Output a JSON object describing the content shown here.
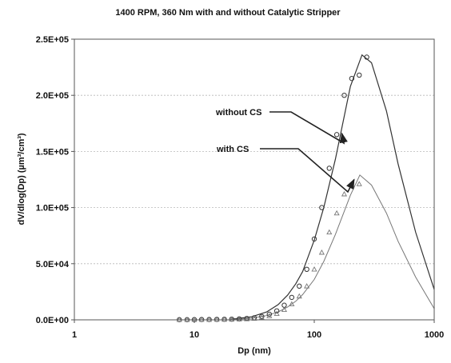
{
  "chart_data": {
    "type": "scatter",
    "title": "1400 RPM, 360 Nm with and without Catalytic Stripper",
    "xlabel": "Dp (nm)",
    "ylabel": "dV/dlog(Dp) (µm³/cm³)",
    "x_scale": "log",
    "xlim": [
      1,
      1000
    ],
    "ylim": [
      0,
      250000
    ],
    "x_ticks": [
      1,
      10,
      100,
      1000
    ],
    "x_tick_labels": [
      "1",
      "10",
      "100",
      "1000"
    ],
    "y_ticks": [
      0,
      50000,
      100000,
      150000,
      200000,
      250000
    ],
    "y_tick_labels": [
      "0.0E+00",
      "5.0E+04",
      "1.0E+05",
      "1.5E+05",
      "2.0E+05",
      "2.5E+05"
    ],
    "grid": "horizontal dashed",
    "legend": "none",
    "series": [
      {
        "name": "without CS",
        "marker": "open-circle",
        "color": "#333333",
        "points": [
          [
            7.5,
            100
          ],
          [
            8.7,
            100
          ],
          [
            10,
            200
          ],
          [
            11.5,
            300
          ],
          [
            13.3,
            300
          ],
          [
            15.4,
            400
          ],
          [
            17.8,
            500
          ],
          [
            20.5,
            600
          ],
          [
            23.7,
            800
          ],
          [
            27.4,
            1200
          ],
          [
            31.6,
            1800
          ],
          [
            36.5,
            3000
          ],
          [
            42.2,
            5000
          ],
          [
            48.7,
            8000
          ],
          [
            56.2,
            13000
          ],
          [
            64.9,
            20000
          ],
          [
            75,
            30000
          ],
          [
            86.6,
            45000
          ],
          [
            100,
            72000
          ],
          [
            115.5,
            100000
          ],
          [
            133.4,
            135000
          ],
          [
            154,
            165000
          ],
          [
            177.8,
            200000
          ],
          [
            205.4,
            215000
          ],
          [
            237.1,
            218000
          ],
          [
            273.8,
            234000
          ]
        ],
        "fit": {
          "peak_x": 250,
          "peak_y": 236000,
          "log10_width": 0.3,
          "curve_x": [
            20,
            30,
            40,
            50,
            60,
            70,
            80,
            100,
            120,
            150,
            200,
            250,
            300,
            400,
            500,
            700,
            1000
          ],
          "curve_y": [
            500,
            2700,
            7000,
            13500,
            22000,
            32000,
            43000,
            71000,
            100000,
            143000,
            208000,
            236000,
            229000,
            186000,
            139000,
            78000,
            27000
          ]
        }
      },
      {
        "name": "with CS",
        "marker": "open-triangle",
        "color": "#777777",
        "points": [
          [
            7.5,
            100
          ],
          [
            8.7,
            100
          ],
          [
            10,
            100
          ],
          [
            11.5,
            200
          ],
          [
            13.3,
            200
          ],
          [
            15.4,
            300
          ],
          [
            17.8,
            300
          ],
          [
            20.5,
            400
          ],
          [
            23.7,
            600
          ],
          [
            27.4,
            800
          ],
          [
            31.6,
            1200
          ],
          [
            36.5,
            2000
          ],
          [
            42.2,
            3500
          ],
          [
            48.7,
            5500
          ],
          [
            56.2,
            9000
          ],
          [
            64.9,
            14000
          ],
          [
            75,
            21000
          ],
          [
            86.6,
            30000
          ],
          [
            100,
            45000
          ],
          [
            115.5,
            60000
          ],
          [
            133.4,
            78000
          ],
          [
            154,
            95000
          ],
          [
            177.8,
            112000
          ],
          [
            205.4,
            120000
          ],
          [
            237.1,
            121000
          ]
        ],
        "fit": {
          "peak_x": 240,
          "peak_y": 129000,
          "log10_width": 0.29,
          "curve_x": [
            20,
            30,
            40,
            50,
            60,
            70,
            80,
            100,
            120,
            150,
            200,
            240,
            300,
            400,
            500,
            700,
            1000
          ],
          "curve_y": [
            250,
            1400,
            3800,
            7000,
            11500,
            16500,
            22500,
            36000,
            52000,
            76000,
            111000,
            129000,
            120000,
            95000,
            70000,
            38000,
            10000
          ]
        }
      }
    ],
    "annotations": [
      {
        "text": "without CS",
        "arrow_to": [
          170,
          166000
        ]
      },
      {
        "text": "with CS",
        "arrow_to": [
          215,
          125000
        ]
      }
    ]
  }
}
